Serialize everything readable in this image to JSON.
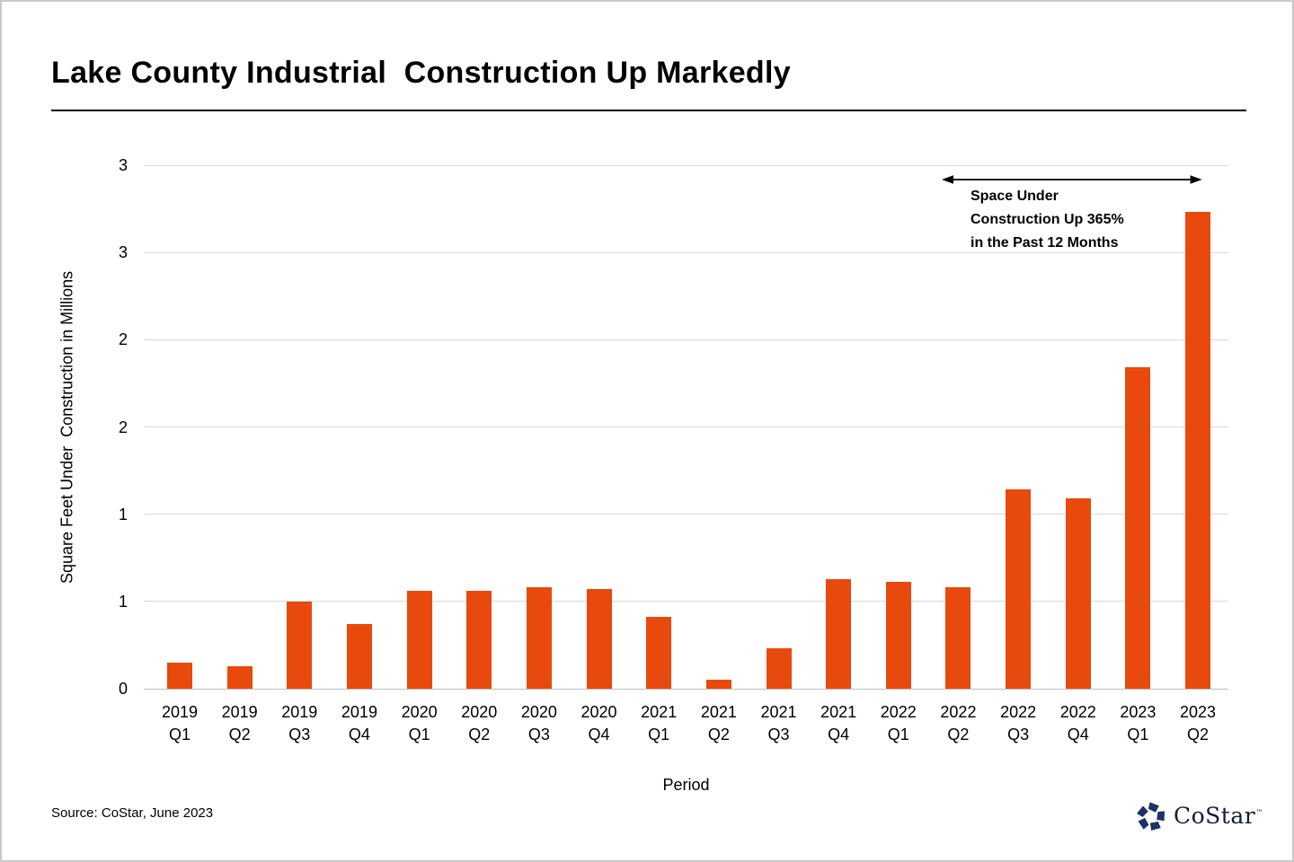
{
  "page": {
    "title": "Lake County Industrial  Construction Up Markedly",
    "source": "Source: CoStar, June 2023"
  },
  "chart_data": {
    "type": "bar",
    "title": "Lake County Industrial Construction Up Markedly",
    "xlabel": "Period",
    "ylabel": "Square Feet Under  Construction in Millions",
    "categories": [
      "2019 Q1",
      "2019 Q2",
      "2019 Q3",
      "2019 Q4",
      "2020 Q1",
      "2020 Q2",
      "2020 Q3",
      "2020 Q4",
      "2021 Q1",
      "2021 Q2",
      "2021 Q3",
      "2021 Q4",
      "2022 Q1",
      "2022 Q2",
      "2022 Q3",
      "2022 Q4",
      "2023 Q1",
      "2023 Q2"
    ],
    "values": [
      0.15,
      0.13,
      0.5,
      0.37,
      0.56,
      0.56,
      0.58,
      0.57,
      0.41,
      0.05,
      0.23,
      0.63,
      0.61,
      0.58,
      1.14,
      1.09,
      1.84,
      2.73
    ],
    "ylim": [
      0,
      3
    ],
    "ytick_step": 0.5,
    "ytick_labels_bottom_to_top": [
      "0",
      "1",
      "1",
      "2",
      "2",
      "3",
      "3"
    ],
    "grid": "horizontal",
    "legend": "none",
    "annotation": {
      "lines": [
        "Space Under",
        "Construction Up 365%",
        "in the Past 12 Months"
      ],
      "span_from": "2022 Q2",
      "span_to": "2023 Q2"
    }
  },
  "colors": {
    "bar": "#E8490D",
    "gridline": "#D9D9D9",
    "axis_line": "#BDBDBD",
    "logo_icon": "#1E3268",
    "logo_text": "#141D38"
  },
  "logo": {
    "icon": "costar-pinwheel-icon",
    "text": "CoStar",
    "trademark": "™"
  }
}
